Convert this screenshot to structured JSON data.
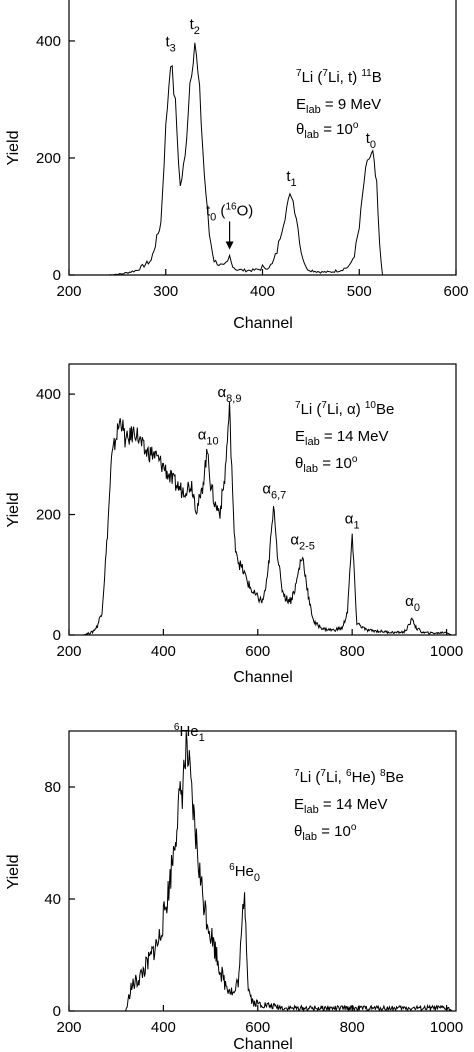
{
  "chart_data": [
    {
      "type": "line",
      "xlabel": "Channel",
      "ylabel": "Yield",
      "xlim": [
        200,
        600
      ],
      "ylim": [
        0,
        470
      ],
      "xticks": [
        "200",
        "300",
        "400",
        "500",
        "600"
      ],
      "yticks": [
        "0",
        "200",
        "400"
      ],
      "reaction": {
        "A": "7",
        "el": "Li",
        "pA": "7",
        "pel": "Li",
        "eject": "t",
        "B": "11",
        "res": "B"
      },
      "energy": "9 MeV",
      "angle": "10",
      "peaks": [
        {
          "base": "t",
          "sub": "3",
          "text": "t3",
          "x": 305,
          "y": 370
        },
        {
          "base": "t",
          "sub": "2",
          "text": "t2",
          "x": 330,
          "y": 400
        },
        {
          "base": "t",
          "sub": "0",
          "text": "t0 (16O)",
          "note": "16O",
          "x": 366,
          "y": 30
        },
        {
          "base": "t",
          "sub": "1",
          "text": "t1",
          "x": 430,
          "y": 140
        },
        {
          "base": "t",
          "sub": "0",
          "text": "t0",
          "x": 512,
          "y": 205
        }
      ],
      "series": [
        {
          "points": [
            [
              200,
              0
            ],
            [
              240,
              0
            ],
            [
              255,
              2
            ],
            [
              270,
              8
            ],
            [
              285,
              25
            ],
            [
              295,
              90
            ],
            [
              300,
              250
            ],
            [
              305,
              370
            ],
            [
              310,
              290
            ],
            [
              315,
              150
            ],
            [
              320,
              200
            ],
            [
              325,
              330
            ],
            [
              330,
              400
            ],
            [
              335,
              310
            ],
            [
              340,
              170
            ],
            [
              345,
              70
            ],
            [
              350,
              25
            ],
            [
              355,
              18
            ],
            [
              360,
              15
            ],
            [
              364,
              22
            ],
            [
              366,
              32
            ],
            [
              368,
              20
            ],
            [
              372,
              10
            ],
            [
              380,
              8
            ],
            [
              390,
              8
            ],
            [
              398,
              10
            ],
            [
              400,
              15
            ],
            [
              402,
              10
            ],
            [
              410,
              18
            ],
            [
              415,
              40
            ],
            [
              420,
              80
            ],
            [
              425,
              115
            ],
            [
              430,
              140
            ],
            [
              435,
              100
            ],
            [
              440,
              40
            ],
            [
              445,
              12
            ],
            [
              450,
              8
            ],
            [
              460,
              5
            ],
            [
              470,
              5
            ],
            [
              480,
              8
            ],
            [
              490,
              15
            ],
            [
              495,
              35
            ],
            [
              500,
              80
            ],
            [
              505,
              160
            ],
            [
              510,
              200
            ],
            [
              514,
              205
            ],
            [
              518,
              150
            ],
            [
              521,
              50
            ],
            [
              524,
              0
            ],
            [
              600,
              0
            ]
          ]
        }
      ]
    },
    {
      "type": "line",
      "xlabel": "Channel",
      "ylabel": "Yield",
      "xlim": [
        200,
        1020
      ],
      "ylim": [
        0,
        450
      ],
      "xticks": [
        "200",
        "400",
        "600",
        "800",
        "1000"
      ],
      "yticks": [
        "0",
        "200",
        "400"
      ],
      "reaction": {
        "A": "7",
        "el": "Li",
        "pA": "7",
        "pel": "Li",
        "eject": "α",
        "B": "10",
        "res": "Be"
      },
      "energy": "14 MeV",
      "angle": "10",
      "peaks": [
        {
          "base": "α",
          "sub": "10",
          "text": "α10",
          "x": 495,
          "y": 305
        },
        {
          "base": "α",
          "sub": "8,9",
          "text": "α8,9",
          "x": 540,
          "y": 375
        },
        {
          "base": "α",
          "sub": "6,7",
          "text": "α6,7",
          "x": 635,
          "y": 215
        },
        {
          "base": "α",
          "sub": "2-5",
          "text": "α2-5",
          "x": 695,
          "y": 130
        },
        {
          "base": "α",
          "sub": "1",
          "text": "α1",
          "x": 800,
          "y": 165
        },
        {
          "base": "α",
          "sub": "0",
          "text": "α0",
          "x": 928,
          "y": 28
        }
      ],
      "series": [
        {
          "points": [
            [
              230,
              0
            ],
            [
              250,
              5
            ],
            [
              260,
              15
            ],
            [
              270,
              40
            ],
            [
              280,
              150
            ],
            [
              290,
              290
            ],
            [
              300,
              330
            ],
            [
              310,
              360
            ],
            [
              320,
              320
            ],
            [
              340,
              340
            ],
            [
              360,
              305
            ],
            [
              380,
              300
            ],
            [
              400,
              280
            ],
            [
              420,
              255
            ],
            [
              440,
              240
            ],
            [
              460,
              250
            ],
            [
              470,
              210
            ],
            [
              480,
              230
            ],
            [
              490,
              290
            ],
            [
              495,
              305
            ],
            [
              500,
              250
            ],
            [
              510,
              215
            ],
            [
              520,
              205
            ],
            [
              530,
              260
            ],
            [
              540,
              375
            ],
            [
              545,
              280
            ],
            [
              550,
              160
            ],
            [
              560,
              120
            ],
            [
              570,
              105
            ],
            [
              580,
              85
            ],
            [
              590,
              70
            ],
            [
              600,
              62
            ],
            [
              610,
              55
            ],
            [
              620,
              90
            ],
            [
              630,
              180
            ],
            [
              635,
              215
            ],
            [
              640,
              150
            ],
            [
              650,
              80
            ],
            [
              660,
              60
            ],
            [
              670,
              58
            ],
            [
              680,
              80
            ],
            [
              690,
              120
            ],
            [
              695,
              130
            ],
            [
              700,
              105
            ],
            [
              710,
              50
            ],
            [
              720,
              20
            ],
            [
              740,
              10
            ],
            [
              760,
              8
            ],
            [
              780,
              12
            ],
            [
              790,
              40
            ],
            [
              795,
              100
            ],
            [
              800,
              165
            ],
            [
              805,
              90
            ],
            [
              810,
              20
            ],
            [
              830,
              8
            ],
            [
              860,
              6
            ],
            [
              890,
              4
            ],
            [
              910,
              5
            ],
            [
              920,
              15
            ],
            [
              928,
              28
            ],
            [
              935,
              12
            ],
            [
              950,
              4
            ],
            [
              980,
              3
            ],
            [
              1000,
              5
            ],
            [
              1010,
              0
            ]
          ]
        }
      ]
    },
    {
      "type": "line",
      "xlabel": "Channel",
      "ylabel": "Yield",
      "xlim": [
        200,
        1020
      ],
      "ylim": [
        0,
        100
      ],
      "xticks": [
        "200",
        "400",
        "600",
        "800",
        "1000"
      ],
      "yticks": [
        "0",
        "40",
        "80"
      ],
      "reaction": {
        "A": "7",
        "el": "Li",
        "pA": "7",
        "pel": "Li",
        "eject": "6He",
        "B": "8",
        "res": "Be"
      },
      "energy": "14 MeV",
      "angle": "10",
      "peaks": [
        {
          "base": "He",
          "pre": "6",
          "sub": "1",
          "text": "6He1",
          "x": 455,
          "y": 94
        },
        {
          "base": "He",
          "pre": "6",
          "sub": "0",
          "text": "6He0",
          "x": 572,
          "y": 44
        }
      ],
      "series": [
        {
          "points": [
            [
              320,
              0
            ],
            [
              325,
              3
            ],
            [
              330,
              8
            ],
            [
              340,
              10
            ],
            [
              350,
              12
            ],
            [
              360,
              15
            ],
            [
              370,
              18
            ],
            [
              380,
              22
            ],
            [
              390,
              25
            ],
            [
              400,
              33
            ],
            [
              410,
              42
            ],
            [
              420,
              55
            ],
            [
              430,
              70
            ],
            [
              440,
              80
            ],
            [
              445,
              88
            ],
            [
              450,
              94
            ],
            [
              455,
              85
            ],
            [
              460,
              75
            ],
            [
              470,
              60
            ],
            [
              480,
              45
            ],
            [
              490,
              35
            ],
            [
              500,
              28
            ],
            [
              510,
              22
            ],
            [
              520,
              15
            ],
            [
              530,
              10
            ],
            [
              540,
              8
            ],
            [
              550,
              6
            ],
            [
              560,
              12
            ],
            [
              565,
              25
            ],
            [
              570,
              40
            ],
            [
              572,
              44
            ],
            [
              576,
              25
            ],
            [
              580,
              8
            ],
            [
              590,
              3
            ],
            [
              620,
              2
            ],
            [
              660,
              1
            ],
            [
              700,
              1
            ],
            [
              800,
              1
            ],
            [
              900,
              1
            ],
            [
              1000,
              1
            ],
            [
              1015,
              0
            ]
          ]
        }
      ]
    }
  ]
}
